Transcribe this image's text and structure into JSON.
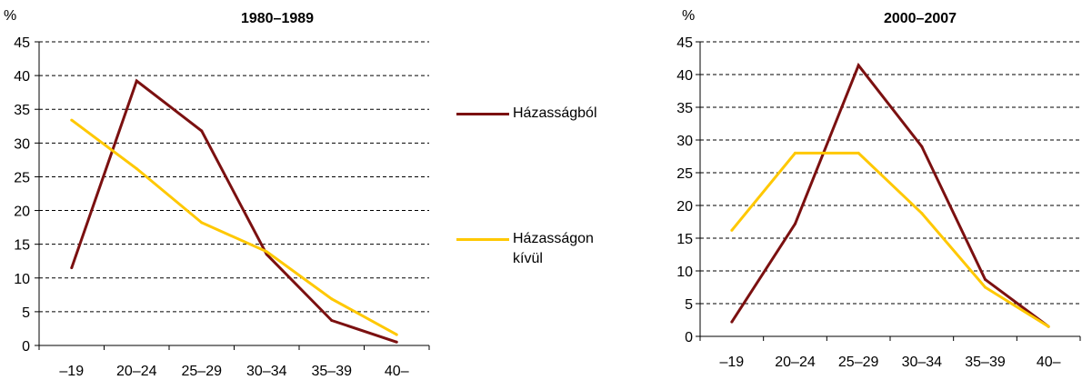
{
  "chart_data": [
    {
      "type": "line",
      "title": "1980–1989",
      "ylabel": "%",
      "xlabel": "",
      "ylim": [
        0,
        45
      ],
      "yticks": [
        0,
        5,
        10,
        15,
        20,
        25,
        30,
        35,
        40,
        45
      ],
      "grid": "horizontal-dashed",
      "categories": [
        "–19",
        "20–24",
        "25–29",
        "30–34",
        "35–39",
        "40–"
      ],
      "series": [
        {
          "name": "Házasságból",
          "color": "#7b1010",
          "values": [
            11.5,
            39.2,
            31.8,
            13.5,
            3.7,
            0.5
          ]
        },
        {
          "name": "Házasságon kívül",
          "color": "#ffc800",
          "values": [
            33.4,
            26.2,
            18.2,
            13.9,
            6.9,
            1.6
          ]
        }
      ]
    },
    {
      "type": "line",
      "title": "2000–2007",
      "ylabel": "%",
      "xlabel": "",
      "ylim": [
        0,
        45
      ],
      "yticks": [
        0,
        5,
        10,
        15,
        20,
        25,
        30,
        35,
        40,
        45
      ],
      "grid": "horizontal-dashed",
      "categories": [
        "–19",
        "20–24",
        "25–29",
        "30–34",
        "35–39",
        "40–"
      ],
      "series": [
        {
          "name": "Házasságból",
          "color": "#7b1010",
          "values": [
            2.2,
            17.2,
            41.4,
            29.0,
            8.7,
            1.5
          ]
        },
        {
          "name": "Házasságon kívül",
          "color": "#ffc800",
          "values": [
            16.2,
            28.0,
            28.0,
            18.8,
            7.5,
            1.5
          ]
        }
      ]
    }
  ],
  "legend": {
    "position": "center",
    "items": [
      {
        "label": "Házasságból",
        "color": "#7b1010"
      },
      {
        "label": "Házasságon kívül",
        "color": "#ffc800"
      }
    ]
  }
}
